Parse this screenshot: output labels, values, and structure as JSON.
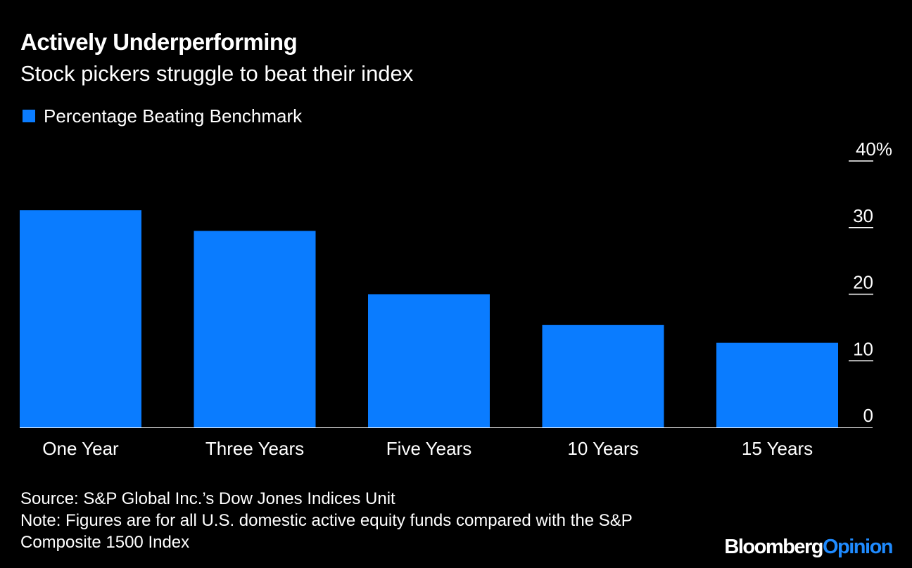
{
  "title": "Actively Underperforming",
  "subtitle": "Stock pickers struggle to beat their index",
  "colors": {
    "background": "#000000",
    "bar": "#0a7cff",
    "text": "#ffffff",
    "brand_accent": "#1f8bff"
  },
  "chart_data": {
    "type": "bar",
    "categories": [
      "One Year",
      "Three Years",
      "Five Years",
      "10 Years",
      "15 Years"
    ],
    "series": [
      {
        "name": "Percentage Beating Benchmark",
        "values": [
          32.6,
          29.5,
          20.0,
          15.4,
          12.7
        ]
      }
    ],
    "ylim": [
      0,
      40
    ],
    "y_ticks": [
      0,
      10,
      20,
      30,
      40
    ],
    "y_tick_labels": [
      "0",
      "10",
      "20",
      "30",
      "40%"
    ],
    "y_axis_position": "right",
    "legend_position": "top-left",
    "grid": false
  },
  "footer": {
    "source": "Source: S&P Global Inc.’s Dow Jones Indices Unit",
    "note_line1": "Note: Figures are for all U.S. domestic active equity funds compared with the S&P",
    "note_line2": "Composite 1500 Index"
  },
  "brand": {
    "name": "Bloomberg",
    "suffix": "Opinion"
  }
}
